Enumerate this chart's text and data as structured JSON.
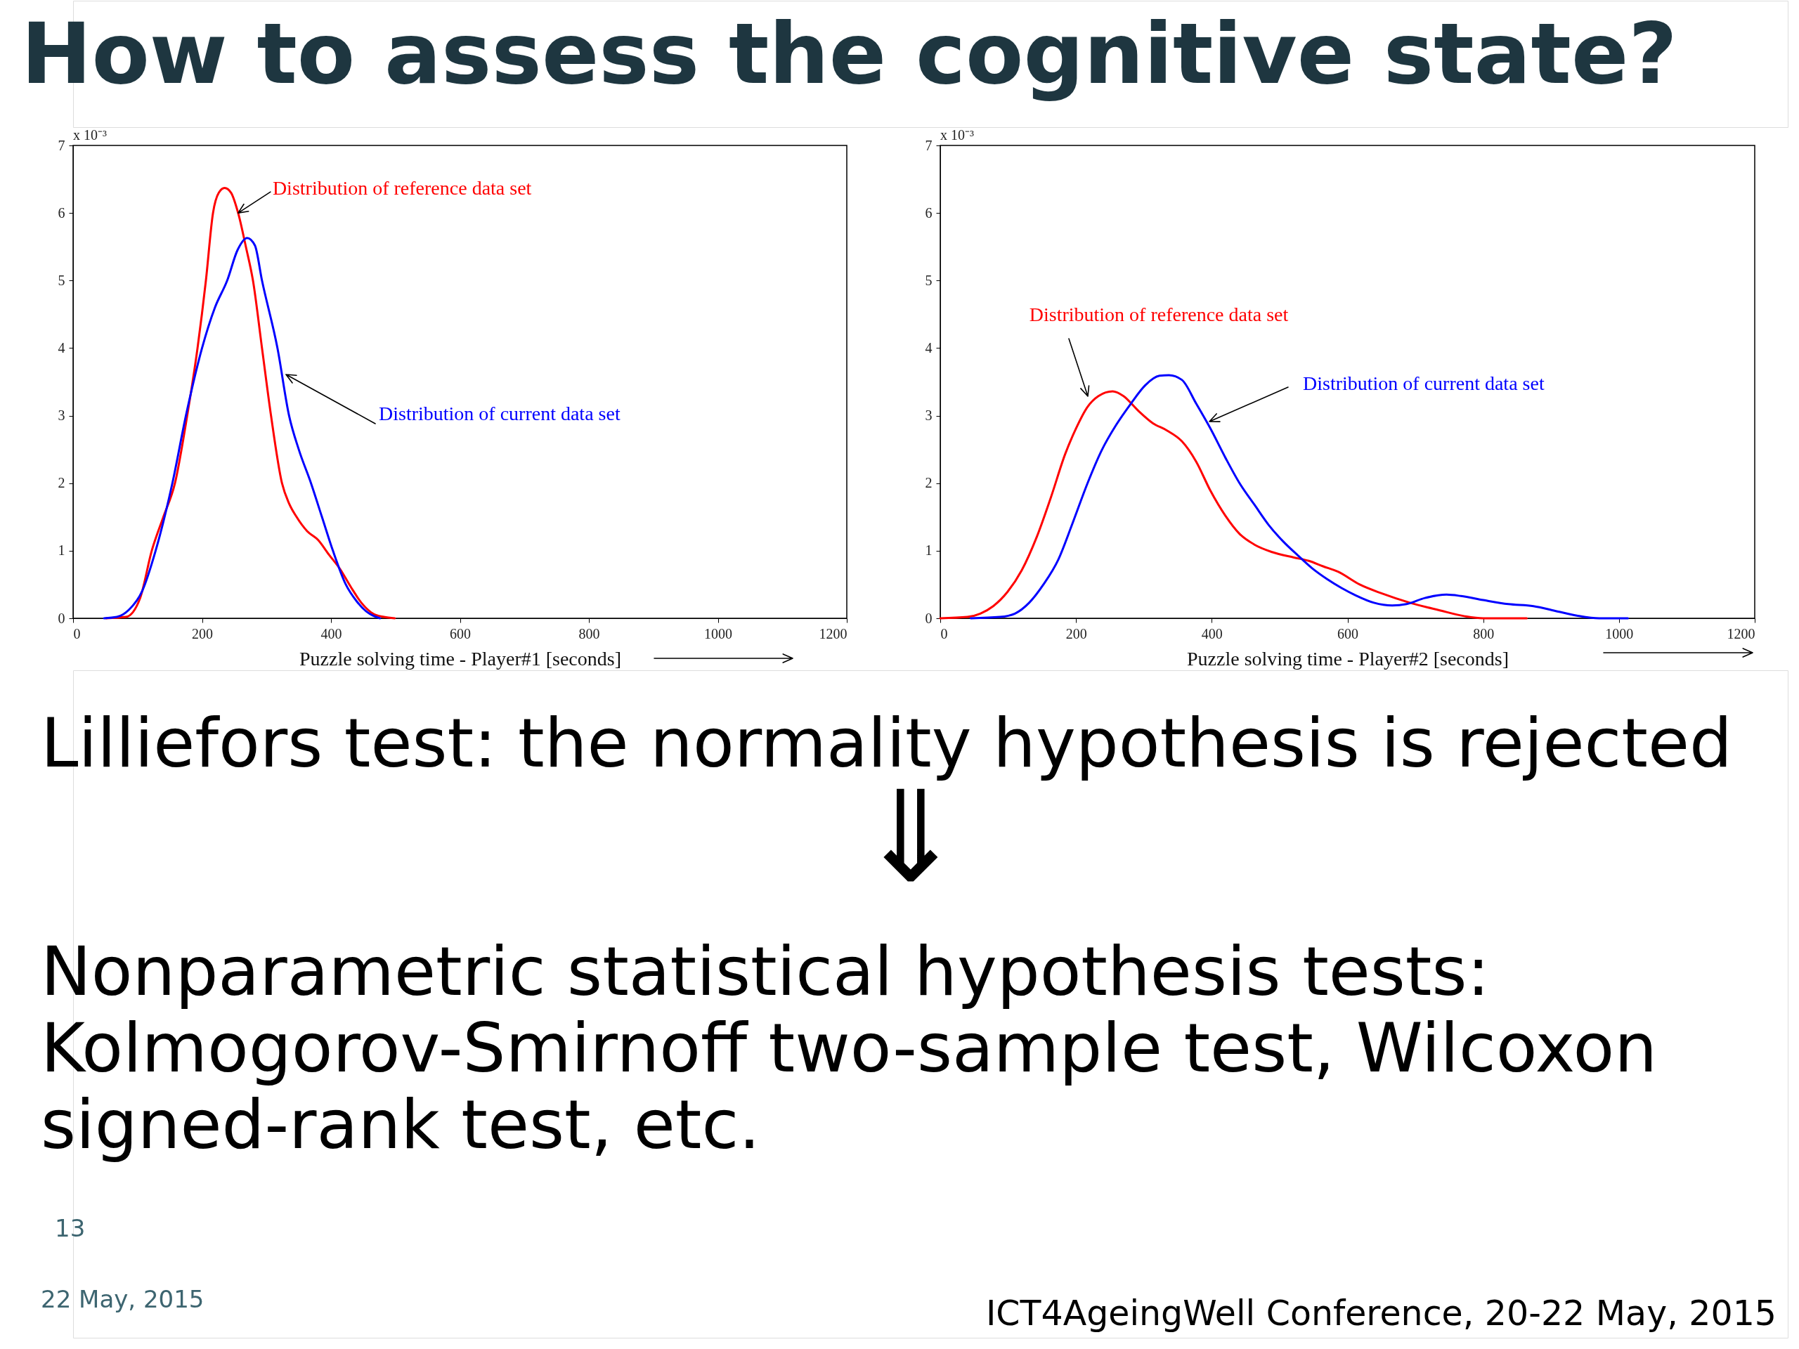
{
  "chart_data": [
    {
      "type": "other",
      "title": "How to assess the cognitive state?"
    },
    {
      "type": "line",
      "xlabel": "Puzzle solving time - Player#1 [seconds]",
      "xlim": [
        0,
        1200
      ],
      "xticks": [
        0,
        200,
        400,
        600,
        800,
        1000,
        1200
      ],
      "ylim": [
        0,
        7
      ],
      "yticks": [
        0,
        1,
        2,
        3,
        4,
        5,
        6,
        7
      ],
      "annotations": [
        "x 10⁻³",
        {
          "text": "Distribution of reference data set",
          "x": 256,
          "y": 6.0
        },
        "Distribution of current data set"
      ],
      "series": [
        {
          "color": "#ff0000",
          "x": [
            51,
            82,
            104,
            122,
            140,
            158,
            177,
            193,
            206,
            217,
            226,
            235,
            245,
            256,
            268,
            279,
            293,
            307,
            324,
            335,
            346,
            363,
            380,
            397,
            414,
            431,
            448,
            465,
            482,
            499
          ],
          "values": [
            0,
            0.02,
            0.3,
            1.0,
            1.5,
            2.0,
            3.0,
            4.0,
            5.0,
            6.0,
            6.3,
            6.37,
            6.3,
            6.0,
            5.5,
            5.0,
            4.0,
            3.0,
            2.0,
            1.7,
            1.51,
            1.29,
            1.16,
            0.94,
            0.73,
            0.46,
            0.22,
            0.07,
            0.02,
            0
          ]
        },
        {
          "color": "#0000ff",
          "x": [
            48,
            68,
            87,
            107,
            128,
            154,
            175,
            200,
            220,
            239,
            255,
            270,
            282,
            293,
            317,
            335,
            350,
            369,
            386,
            403,
            423,
            440,
            455,
            465,
            476
          ],
          "values": [
            0,
            0.02,
            0.13,
            0.4,
            1.0,
            2.0,
            3.0,
            4.0,
            4.6,
            5.0,
            5.45,
            5.63,
            5.52,
            5.0,
            4.0,
            3.0,
            2.5,
            2.0,
            1.5,
            1.0,
            0.5,
            0.25,
            0.1,
            0.04,
            0
          ]
        }
      ]
    },
    {
      "type": "line",
      "xlabel": "Puzzle solving time - Player#2 [seconds]",
      "xlim": [
        0,
        1200
      ],
      "xticks": [
        0,
        200,
        400,
        600,
        800,
        1000,
        1200
      ],
      "ylim": [
        0,
        7
      ],
      "yticks": [
        0,
        1,
        2,
        3,
        4,
        5,
        6,
        7
      ],
      "annotations": [
        "x 10⁻³",
        "Distribution of reference data set",
        "Distribution of current data set"
      ],
      "series": [
        {
          "color": "#ff0000",
          "x": [
            0,
            40,
            59,
            78,
            99,
            120,
            142,
            163,
            184,
            200,
            217,
            233,
            254,
            270,
            291,
            313,
            334,
            356,
            377,
            398,
            420,
            441,
            463,
            489,
            521,
            543,
            564,
            586,
            618,
            650,
            692,
            735,
            773,
            800,
            864
          ],
          "values": [
            0,
            0.02,
            0.07,
            0.18,
            0.39,
            0.71,
            1.2,
            1.79,
            2.43,
            2.81,
            3.13,
            3.29,
            3.36,
            3.29,
            3.08,
            2.89,
            2.78,
            2.62,
            2.32,
            1.89,
            1.52,
            1.25,
            1.09,
            0.98,
            0.9,
            0.85,
            0.77,
            0.69,
            0.5,
            0.37,
            0.23,
            0.12,
            0.03,
            0,
            0
          ]
        },
        {
          "color": "#0000ff",
          "x": [
            45,
            88,
            110,
            131,
            152,
            174,
            195,
            217,
            238,
            259,
            281,
            302,
            323,
            337,
            356,
            377,
            398,
            420,
            441,
            463,
            484,
            505,
            527,
            548,
            570,
            591,
            612,
            639,
            666,
            687,
            714,
            746,
            767,
            800,
            837,
            874,
            906,
            938,
            971,
            1013
          ],
          "values": [
            0,
            0.02,
            0.07,
            0.23,
            0.5,
            0.87,
            1.41,
            2.0,
            2.49,
            2.86,
            3.18,
            3.45,
            3.59,
            3.6,
            3.53,
            3.18,
            2.81,
            2.38,
            2.0,
            1.68,
            1.38,
            1.14,
            0.93,
            0.74,
            0.58,
            0.45,
            0.34,
            0.23,
            0.19,
            0.21,
            0.3,
            0.35,
            0.33,
            0.27,
            0.21,
            0.18,
            0.11,
            0.04,
            0,
            0
          ]
        }
      ]
    },
    {
      "type": "other",
      "annotations": [
        "Lilliefors test: the normality hypothesis is rejected",
        "⇓",
        "Nonparametric statistical hypothesis tests:",
        "Kolmogorov-Smirnoff two-sample test, Wilcoxon",
        "signed-rank test, etc.",
        "13",
        "22 May, 2015",
        "ICT4AgeingWell Conference, 20-22 May, 2015"
      ]
    }
  ]
}
